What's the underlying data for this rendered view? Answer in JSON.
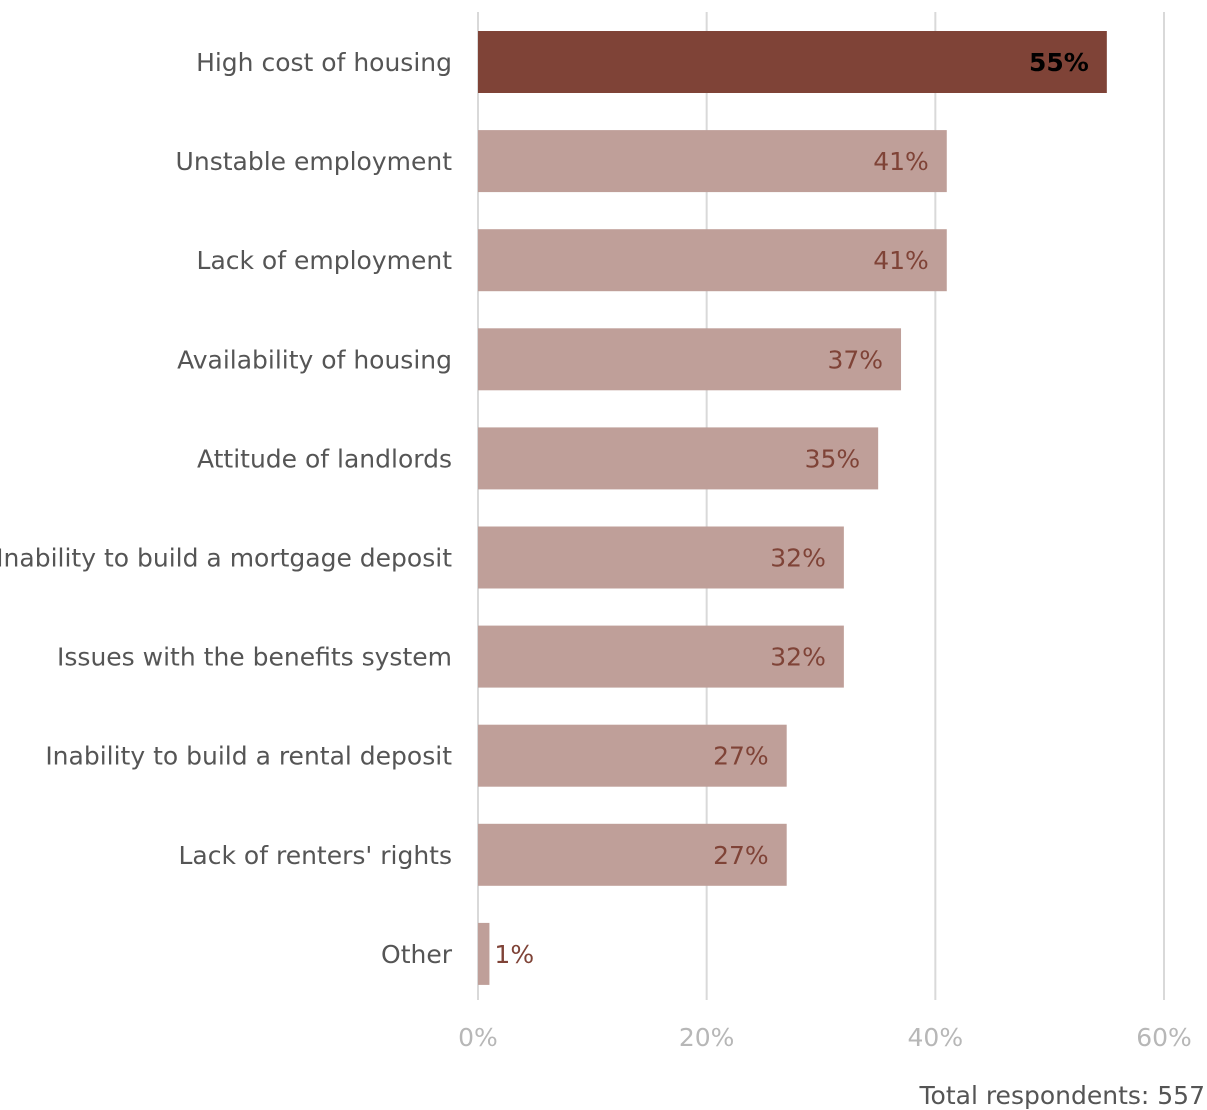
{
  "chart_data": {
    "type": "bar",
    "orientation": "horizontal",
    "categories": [
      "High cost of housing",
      "Unstable employment",
      "Lack of employment",
      "Availability of housing",
      "Attitude of landlords",
      "Inability to build a mortgage deposit",
      "Issues with the benefits system",
      "Inability to build a rental deposit",
      "Lack of renters' rights",
      "Other"
    ],
    "values": [
      55,
      41,
      41,
      37,
      35,
      32,
      32,
      27,
      27,
      1
    ],
    "data_labels": [
      "55%",
      "41%",
      "41%",
      "37%",
      "35%",
      "32%",
      "32%",
      "27%",
      "27%",
      "1%"
    ],
    "highlight_index": 0,
    "xlim": [
      0,
      60
    ],
    "x_ticks": [
      0,
      20,
      40,
      60
    ],
    "x_tick_labels": [
      "0%",
      "20%",
      "40%",
      "60%"
    ],
    "grid": true,
    "colors": {
      "highlight_bar": "#7f4337",
      "bar": "#bf9f99",
      "highlight_label": "#000000",
      "label": "#7f4337",
      "gridline": "#d9d9d9"
    }
  },
  "footnote": "Total respondents: 557"
}
